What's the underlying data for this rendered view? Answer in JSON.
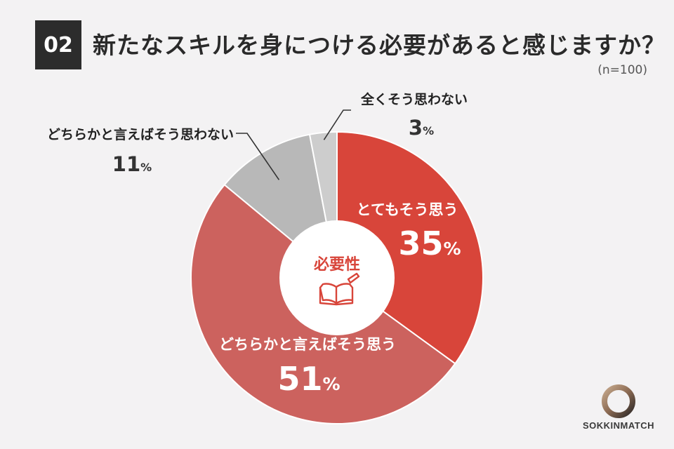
{
  "header": {
    "question_number": "02",
    "title": "新たなスキルを身につける必要があると感じますか？",
    "sample_note": "(n=100)"
  },
  "center": {
    "label": "必要性",
    "icon": "book-pencil-icon"
  },
  "colors": {
    "accent": "#d8453a",
    "slice_1": "#d8453a",
    "slice_2": "#cc625e",
    "slice_3": "#b8b8b8",
    "slice_4": "#cdcdcd"
  },
  "chart_data": {
    "type": "pie",
    "donut": true,
    "categories": [
      "とてもそう思う",
      "どちらかと言えばそう思う",
      "どちらかと言えばそう思わない",
      "全くそう思わない"
    ],
    "values": [
      35,
      51,
      11,
      3
    ],
    "unit": "%",
    "start_angle_deg": 0,
    "direction": "clockwise"
  },
  "logo": {
    "text": "SOKKINMATCH"
  }
}
